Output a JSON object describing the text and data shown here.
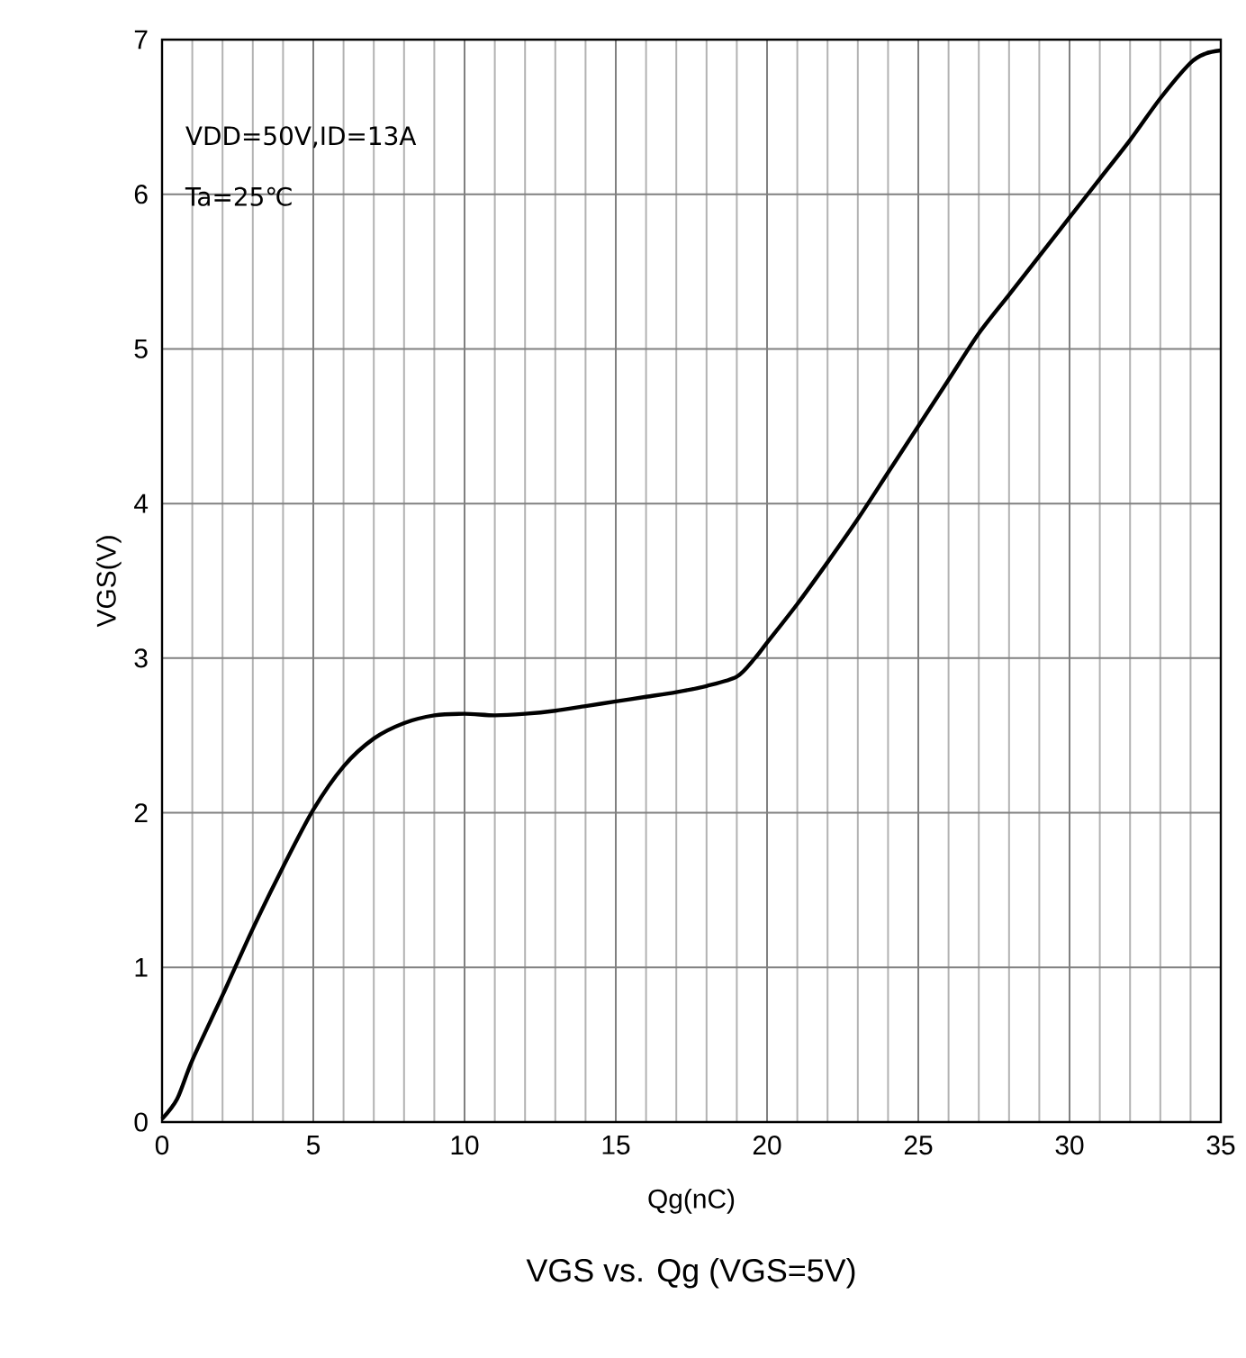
{
  "chart_data": {
    "type": "line",
    "title": "VGS vs. Qg (VGS=5V)",
    "xlabel": "Qg(nC)",
    "ylabel": "VGS(V)",
    "annotations": [
      "VDD=50V,ID=13A",
      "Ta=25℃"
    ],
    "x": [
      0,
      0.5,
      1,
      2,
      3,
      4,
      5,
      6,
      7,
      8,
      9,
      10,
      11,
      12,
      13,
      14,
      15,
      16,
      17,
      18,
      19,
      19.6,
      20,
      21,
      22,
      23,
      24,
      25,
      26,
      27,
      28,
      29,
      30,
      31,
      32,
      33,
      34,
      34.5,
      35
    ],
    "series": [
      {
        "color": "#000000",
        "values": [
          0.02,
          0.15,
          0.4,
          0.82,
          1.25,
          1.65,
          2.02,
          2.3,
          2.48,
          2.58,
          2.63,
          2.64,
          2.63,
          2.64,
          2.66,
          2.69,
          2.72,
          2.75,
          2.78,
          2.82,
          2.88,
          3.0,
          3.1,
          3.35,
          3.62,
          3.9,
          4.2,
          4.5,
          4.8,
          5.1,
          5.35,
          5.6,
          5.85,
          6.1,
          6.35,
          6.62,
          6.85,
          6.91,
          6.93
        ]
      }
    ],
    "xlim": [
      0,
      35
    ],
    "ylim": [
      0,
      7
    ],
    "xticks": [
      0,
      5,
      10,
      15,
      20,
      25,
      30,
      35
    ],
    "yticks": [
      0,
      1,
      2,
      3,
      4,
      5,
      6,
      7
    ],
    "grid": true,
    "marker": "none",
    "line_style": "solid"
  }
}
